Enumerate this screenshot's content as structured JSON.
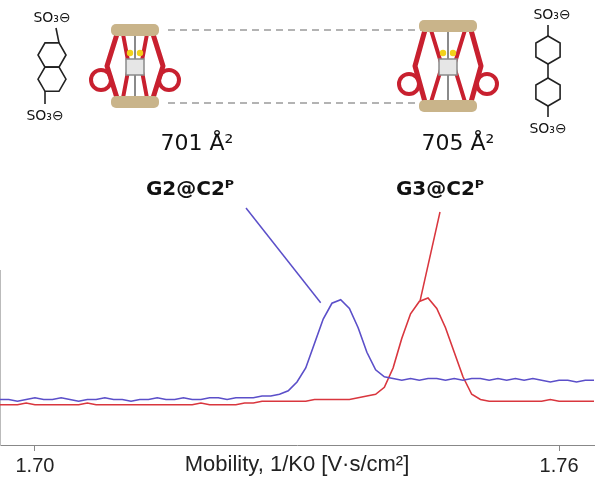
{
  "chart_data": {
    "type": "line",
    "x_label": "Mobility, 1/K0 [V·s/cm²]",
    "x": [
      1.696,
      1.697,
      1.698,
      1.699,
      1.7,
      1.701,
      1.702,
      1.703,
      1.704,
      1.705,
      1.706,
      1.707,
      1.708,
      1.709,
      1.71,
      1.711,
      1.712,
      1.713,
      1.714,
      1.715,
      1.716,
      1.717,
      1.718,
      1.719,
      1.72,
      1.721,
      1.722,
      1.723,
      1.724,
      1.725,
      1.726,
      1.727,
      1.728,
      1.729,
      1.73,
      1.731,
      1.732,
      1.733,
      1.734,
      1.735,
      1.736,
      1.737,
      1.738,
      1.739,
      1.74,
      1.741,
      1.742,
      1.743,
      1.744,
      1.745,
      1.746,
      1.747,
      1.748,
      1.749,
      1.75,
      1.751,
      1.752,
      1.753,
      1.754,
      1.755,
      1.756,
      1.757,
      1.758,
      1.759,
      1.76,
      1.761,
      1.762,
      1.763,
      1.764
    ],
    "xlim": [
      1.696,
      1.764
    ],
    "xticks": [
      {
        "value": 1.7,
        "label": "1.70"
      },
      {
        "value": 1.76,
        "label": "1.76"
      }
    ],
    "ylim": [
      0,
      1
    ],
    "tick_labels": "x",
    "grid": false,
    "series": [
      {
        "name": "G2@C2ᴾ",
        "color": "#5b4fc9",
        "values": [
          0.26,
          0.26,
          0.25,
          0.26,
          0.27,
          0.26,
          0.26,
          0.27,
          0.26,
          0.25,
          0.26,
          0.26,
          0.27,
          0.26,
          0.26,
          0.25,
          0.26,
          0.26,
          0.27,
          0.26,
          0.26,
          0.27,
          0.26,
          0.26,
          0.27,
          0.27,
          0.26,
          0.27,
          0.27,
          0.27,
          0.28,
          0.28,
          0.29,
          0.31,
          0.36,
          0.44,
          0.58,
          0.72,
          0.81,
          0.83,
          0.78,
          0.67,
          0.53,
          0.43,
          0.39,
          0.38,
          0.37,
          0.38,
          0.37,
          0.38,
          0.38,
          0.37,
          0.38,
          0.37,
          0.38,
          0.38,
          0.37,
          0.38,
          0.37,
          0.38,
          0.37,
          0.38,
          0.37,
          0.36,
          0.37,
          0.37,
          0.36,
          0.37,
          0.37
        ]
      },
      {
        "name": "G3@C2ᴾ",
        "color": "#d9363e",
        "values": [
          0.23,
          0.23,
          0.23,
          0.24,
          0.23,
          0.23,
          0.23,
          0.23,
          0.23,
          0.23,
          0.24,
          0.23,
          0.23,
          0.23,
          0.23,
          0.23,
          0.23,
          0.23,
          0.23,
          0.23,
          0.23,
          0.23,
          0.23,
          0.24,
          0.23,
          0.23,
          0.23,
          0.23,
          0.24,
          0.24,
          0.25,
          0.25,
          0.25,
          0.25,
          0.25,
          0.25,
          0.26,
          0.26,
          0.26,
          0.26,
          0.26,
          0.27,
          0.28,
          0.29,
          0.33,
          0.44,
          0.61,
          0.75,
          0.82,
          0.84,
          0.78,
          0.67,
          0.53,
          0.39,
          0.29,
          0.26,
          0.25,
          0.25,
          0.25,
          0.25,
          0.25,
          0.25,
          0.25,
          0.26,
          0.25,
          0.25,
          0.25,
          0.25,
          0.25
        ]
      }
    ],
    "annotations": [
      "701 Å²",
      "705 Å²",
      "SO₃⊖",
      "SO₃⊖",
      "SO₃⊖",
      "SO₃⊖"
    ]
  }
}
